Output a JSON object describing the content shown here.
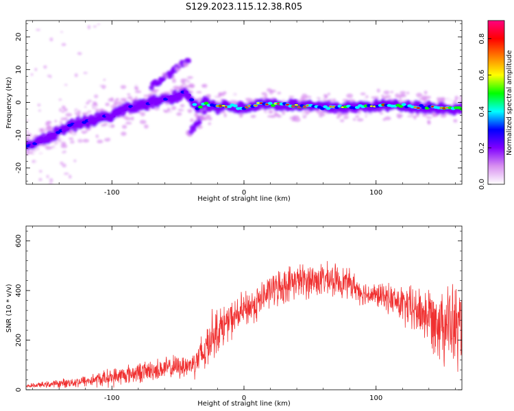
{
  "title": "S129.2023.115.12.38.R05",
  "chart_data": [
    {
      "type": "heatmap",
      "xlabel": "Height of straight line (km)",
      "ylabel": "Frequency (Hz)",
      "xlim": [
        -165,
        165
      ],
      "ylim": [
        -25,
        25
      ],
      "xticks": [
        -100,
        0,
        100
      ],
      "yticks": [
        -20,
        -10,
        0,
        10,
        20
      ],
      "colorbar": {
        "label": "Normalized spectral amplitude",
        "range": [
          0,
          0.9
        ],
        "ticks": [
          0.0,
          0.2,
          0.4,
          0.6,
          0.8
        ],
        "tick_labels": [
          "0.0",
          "0.2",
          "0.4",
          "0.6",
          "0.8"
        ],
        "colormap": [
          "#ffffff",
          "#d890f0",
          "#8000ff",
          "#0000ff",
          "#00ffff",
          "#00ff00",
          "#ffff00",
          "#ff8000",
          "#ff0000",
          "#ff0080"
        ]
      },
      "ridge": {
        "x": [
          -160,
          -150,
          -140,
          -130,
          -120,
          -110,
          -100,
          -90,
          -80,
          -70,
          -60,
          -50,
          -45,
          -40,
          -35,
          -30,
          -25,
          -20,
          -10,
          0,
          10,
          20,
          40,
          60,
          80,
          100,
          120,
          140,
          160
        ],
        "freq": [
          -13,
          -11,
          -9,
          -7,
          -6,
          -5,
          -4,
          -2,
          -1,
          0,
          1,
          2,
          4,
          1,
          -2,
          0,
          -1,
          -1.5,
          -1,
          -2,
          -0.5,
          -0.5,
          -1,
          -1.5,
          -1.5,
          -1,
          -1,
          -1.5,
          -2
        ]
      },
      "branches": [
        {
          "x": [
            -70,
            -55,
            -42
          ],
          "freq": [
            5,
            9,
            13
          ]
        },
        {
          "x": [
            -42,
            -35,
            -30
          ],
          "freq": [
            -10,
            -6,
            -3
          ]
        }
      ]
    },
    {
      "type": "line",
      "xlabel": "Height of straight line (km)",
      "ylabel": "SNR (10 * v/v)",
      "xlim": [
        -165,
        165
      ],
      "ylim": [
        0,
        660
      ],
      "xticks": [
        -100,
        0,
        100
      ],
      "yticks": [
        0,
        200,
        400,
        600
      ],
      "color": "#f03030",
      "envelope": {
        "x": [
          -165,
          -140,
          -120,
          -100,
          -80,
          -60,
          -40,
          -30,
          -25,
          -20,
          -10,
          0,
          10,
          20,
          30,
          40,
          50,
          60,
          70,
          80,
          90,
          100,
          110,
          120,
          130,
          140,
          150,
          160,
          165
        ],
        "mean": [
          15,
          25,
          35,
          50,
          70,
          85,
          100,
          150,
          220,
          240,
          280,
          320,
          350,
          400,
          420,
          440,
          440,
          445,
          440,
          430,
          390,
          380,
          370,
          340,
          320,
          300,
          280,
          250,
          240
        ],
        "spread": [
          8,
          20,
          30,
          45,
          50,
          55,
          60,
          120,
          120,
          110,
          90,
          90,
          90,
          80,
          90,
          80,
          90,
          80,
          80,
          70,
          60,
          60,
          70,
          100,
          120,
          150,
          200,
          220,
          200
        ]
      }
    }
  ]
}
